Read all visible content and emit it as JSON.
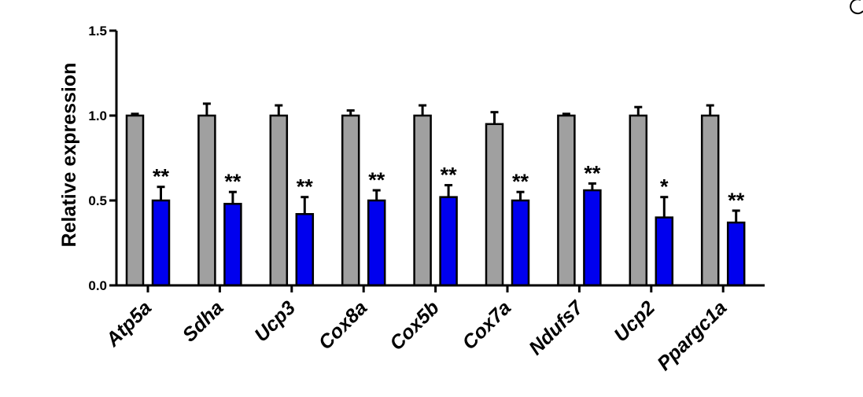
{
  "chart_data": {
    "type": "bar",
    "ylabel": "Relative expression",
    "ylim": [
      0,
      1.5
    ],
    "yticks": [
      "0.0",
      "0.5",
      "1.0",
      "1.5"
    ],
    "categories": [
      "Atp5a",
      "Sdha",
      "Ucp3",
      "Cox8a",
      "Cox5b",
      "Cox7a",
      "Ndufs7",
      "Ucp2",
      "Ppargc1a"
    ],
    "series": [
      {
        "color": "#a0a0a0",
        "values": [
          1.0,
          1.0,
          1.0,
          1.0,
          1.0,
          0.95,
          1.0,
          1.0,
          1.0
        ],
        "errors": [
          0.01,
          0.07,
          0.06,
          0.03,
          0.06,
          0.07,
          0.01,
          0.05,
          0.06
        ]
      },
      {
        "color": "#0000ee",
        "values": [
          0.5,
          0.48,
          0.42,
          0.5,
          0.52,
          0.5,
          0.56,
          0.4,
          0.37
        ],
        "errors": [
          0.08,
          0.07,
          0.1,
          0.06,
          0.07,
          0.05,
          0.04,
          0.12,
          0.07
        ],
        "significance": [
          "**",
          "**",
          "**",
          "**",
          "**",
          "**",
          "**",
          "*",
          "**"
        ]
      }
    ],
    "grid": false,
    "legend": "none"
  }
}
